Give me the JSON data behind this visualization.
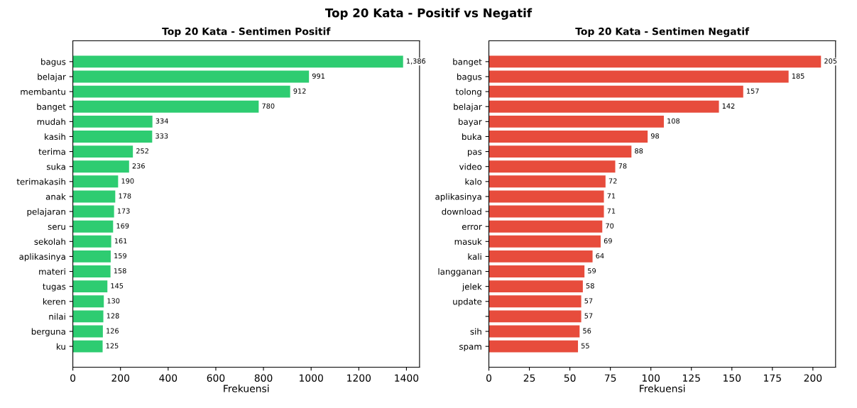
{
  "chart_data": [
    {
      "type": "bar",
      "orientation": "horizontal",
      "title": "Top 20 Kata - Sentimen Positif",
      "xlabel": "Frekuensi",
      "color": "#2ecc71",
      "annotations": [
        "Top 20 Kata - Positif vs Negatif"
      ],
      "categories": [
        "bagus",
        "belajar",
        "membantu",
        "banget",
        "mudah",
        "kasih",
        "terima",
        "suka",
        "terimakasih",
        "anak",
        "pelajaran",
        "seru",
        "sekolah",
        "aplikasinya",
        "materi",
        "tugas",
        "keren",
        "nilai",
        "berguna",
        "ku"
      ],
      "values": [
        1386,
        991,
        912,
        780,
        334,
        333,
        252,
        236,
        190,
        178,
        173,
        169,
        161,
        159,
        158,
        145,
        130,
        128,
        126,
        125
      ],
      "value_labels": [
        "1,386",
        "991",
        "912",
        "780",
        "334",
        "333",
        "252",
        "236",
        "190",
        "178",
        "173",
        "169",
        "161",
        "159",
        "158",
        "145",
        "130",
        "128",
        "126",
        "125"
      ],
      "xlim": [
        0,
        1455
      ],
      "xticks": [
        0,
        200,
        400,
        600,
        800,
        1000,
        1200,
        1400
      ],
      "grid": false
    },
    {
      "type": "bar",
      "orientation": "horizontal",
      "title": "Top 20 Kata - Sentimen Negatif",
      "xlabel": "Frekuensi",
      "color": "#e74c3c",
      "categories": [
        "banget",
        "bagus",
        "tolong",
        "belajar",
        "bayar",
        "buka",
        "pas",
        "video",
        "kalo",
        "aplikasinya",
        "download",
        "error",
        "masuk",
        "kali",
        "langganan",
        "jelek",
        "update",
        null,
        "sih",
        "spam"
      ],
      "values": [
        205,
        185,
        157,
        142,
        108,
        98,
        88,
        78,
        72,
        71,
        71,
        70,
        69,
        64,
        59,
        58,
        57,
        57,
        56,
        55
      ],
      "data_labels": true,
      "xlim": [
        0,
        214
      ],
      "xticks": [
        0,
        25,
        50,
        75,
        100,
        125,
        150,
        175,
        200
      ],
      "grid": false
    }
  ]
}
